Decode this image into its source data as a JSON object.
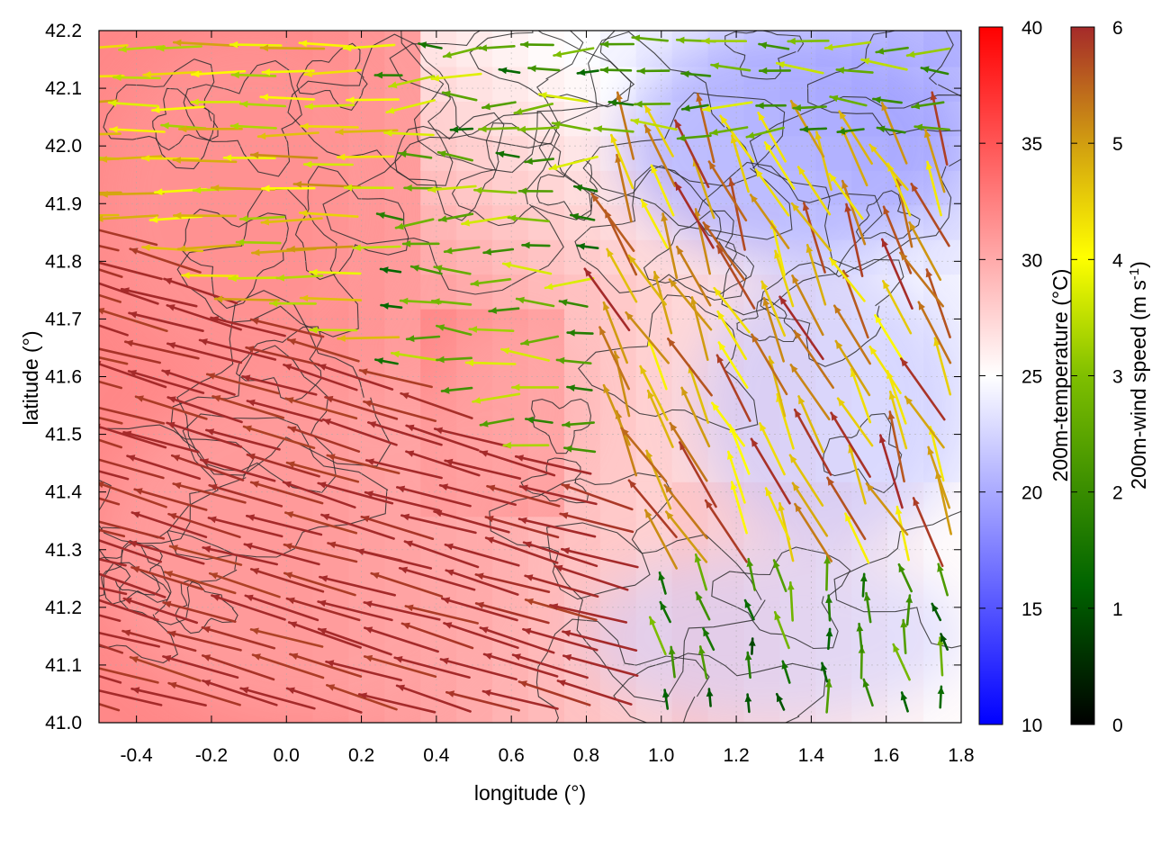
{
  "chart_data": {
    "type": "vector-field",
    "description_fields": [
      "background temperature field",
      "contours",
      "wind arrows"
    ],
    "xlabel": "longitude (°)",
    "ylabel": "latitude (°)",
    "xlim": [
      -0.5,
      1.8
    ],
    "ylim": [
      41.0,
      42.2
    ],
    "xticks": [
      -0.4,
      -0.2,
      0.0,
      0.2,
      0.4,
      0.6,
      0.8,
      1.0,
      1.2,
      1.4,
      1.6,
      1.8
    ],
    "xtick_labels": [
      "-0.4",
      "-0.2",
      "0.0",
      "0.2",
      "0.4",
      "0.6",
      "0.8",
      "1.0",
      "1.2",
      "1.4",
      "1.6",
      "1.8"
    ],
    "yticks": [
      41.0,
      41.1,
      41.2,
      41.3,
      41.4,
      41.5,
      41.6,
      41.7,
      41.8,
      41.9,
      42.0,
      42.1,
      42.2
    ],
    "ytick_labels": [
      "41.0",
      "41.1",
      "41.2",
      "41.3",
      "41.4",
      "41.5",
      "41.6",
      "41.7",
      "41.8",
      "41.9",
      "42.0",
      "42.1",
      "42.2"
    ],
    "grid": true,
    "colorbars": [
      {
        "name": "temperature",
        "label": "200m-temperature (°C)",
        "range": [
          10,
          40
        ],
        "ticks": [
          10,
          15,
          20,
          25,
          30,
          35,
          40
        ],
        "tick_labels": [
          "10",
          "15",
          "20",
          "25",
          "30",
          "35",
          "40"
        ],
        "colors": [
          "#0000ff",
          "#ffffff",
          "#ff0000"
        ]
      },
      {
        "name": "wind-speed",
        "label_main": "200m-wind speed (m s",
        "label_sup": "-1",
        "label_close": ")",
        "range": [
          0,
          6
        ],
        "ticks": [
          0,
          1,
          2,
          3,
          4,
          5,
          6
        ],
        "tick_labels": [
          "0",
          "1",
          "2",
          "3",
          "4",
          "5",
          "6"
        ],
        "colors": [
          "#000000",
          "#006400",
          "#7fbf00",
          "#ffff00",
          "#d2a010",
          "#a52a2a"
        ]
      }
    ],
    "temperature_regions": [
      {
        "region": "west-north",
        "lon": [
          -0.5,
          0.3
        ],
        "lat": [
          41.6,
          42.2
        ],
        "temp_c": 31
      },
      {
        "region": "south-west",
        "lon": [
          -0.5,
          0.6
        ],
        "lat": [
          41.0,
          41.6
        ],
        "temp_c": 30
      },
      {
        "region": "central-plume",
        "lon": [
          0.4,
          0.8
        ],
        "lat": [
          41.4,
          41.7
        ],
        "temp_c": 30
      },
      {
        "region": "north-east",
        "lon": [
          0.9,
          1.8
        ],
        "lat": [
          41.8,
          42.2
        ],
        "temp_c": 18
      },
      {
        "region": "east",
        "lon": [
          1.1,
          1.8
        ],
        "lat": [
          41.3,
          41.8
        ],
        "temp_c": 21
      },
      {
        "region": "south-east",
        "lon": [
          0.8,
          1.8
        ],
        "lat": [
          41.0,
          41.3
        ],
        "temp_c": 22
      }
    ],
    "wind_regions": [
      {
        "region": "south-west",
        "direction": "toward west-north-west",
        "speed_ms": 6
      },
      {
        "region": "north-west",
        "direction": "toward west",
        "speed_ms": 4
      },
      {
        "region": "center-north",
        "direction": "toward west",
        "speed_ms": 2
      },
      {
        "region": "east",
        "direction": "toward north-north-west",
        "speed_ms": 5
      },
      {
        "region": "south-east",
        "direction": "toward north",
        "speed_ms": 1.5
      }
    ]
  }
}
